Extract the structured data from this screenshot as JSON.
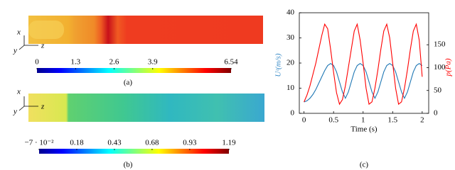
{
  "panel_a": {
    "axes": [
      "x",
      "y",
      "z"
    ],
    "caption": "(a)",
    "colorbar": {
      "lim": [
        0,
        6.54
      ],
      "ticks": [
        0,
        1.3,
        2.6,
        3.9,
        6.54
      ]
    }
  },
  "panel_b": {
    "axes": [
      "x",
      "y",
      "z"
    ],
    "caption": "(b)",
    "colorbar": {
      "lim": [
        -0.07,
        1.19
      ],
      "ticks": [
        {
          "value": -0.07,
          "label": "−7 · 10⁻²"
        },
        0.18,
        0.43,
        0.68,
        0.93,
        1.19
      ]
    }
  },
  "chart_data": {
    "type": "line",
    "caption": "(c)",
    "x_label": "Time (s)",
    "y_label": "Uᶻ(m/s)",
    "y2_label": "p(Pa)",
    "x": [
      0,
      0.05,
      0.1,
      0.15,
      0.2,
      0.25,
      0.3,
      0.35,
      0.4,
      0.45,
      0.5,
      0.55,
      0.6,
      0.65,
      0.7,
      0.75,
      0.8,
      0.85,
      0.9,
      0.95,
      1.0,
      1.05,
      1.1,
      1.15,
      1.2,
      1.25,
      1.3,
      1.35,
      1.4,
      1.45,
      1.5,
      1.55,
      1.6,
      1.65,
      1.7,
      1.75,
      1.8,
      1.85,
      1.9,
      1.95,
      2.0
    ],
    "series": [
      {
        "name": "U",
        "color": "#1f77b4",
        "values": [
          4.5,
          5,
          6,
          7.5,
          9.5,
          12,
          14.5,
          17,
          19,
          19.8,
          19,
          16.5,
          12.5,
          8.5,
          6,
          8.5,
          12.5,
          16.5,
          19,
          19.8,
          19,
          16.5,
          12.5,
          8.5,
          6,
          8.5,
          12.5,
          16.5,
          19,
          19.8,
          19,
          16.5,
          12.5,
          8.5,
          6,
          8.5,
          12.5,
          16.5,
          19,
          19.8,
          19
        ]
      },
      {
        "name": "p",
        "color": "#ff0000",
        "axis": "y2",
        "values": [
          25,
          40,
          60,
          85,
          110,
          140,
          170,
          195,
          185,
          140,
          90,
          45,
          20,
          30,
          60,
          100,
          140,
          180,
          195,
          160,
          110,
          55,
          20,
          25,
          55,
          95,
          140,
          180,
          195,
          165,
          110,
          55,
          20,
          25,
          55,
          95,
          140,
          180,
          195,
          160,
          80
        ]
      }
    ],
    "xlim": [
      -0.08,
      2.11
    ],
    "xticks": [
      0,
      0.5,
      1,
      1.5,
      2
    ],
    "ylim": [
      0,
      40
    ],
    "yticks": [
      0,
      10,
      20,
      30,
      40
    ],
    "y2lim": [
      0,
      220
    ],
    "y2ticks": [
      0,
      50,
      100,
      150
    ]
  }
}
